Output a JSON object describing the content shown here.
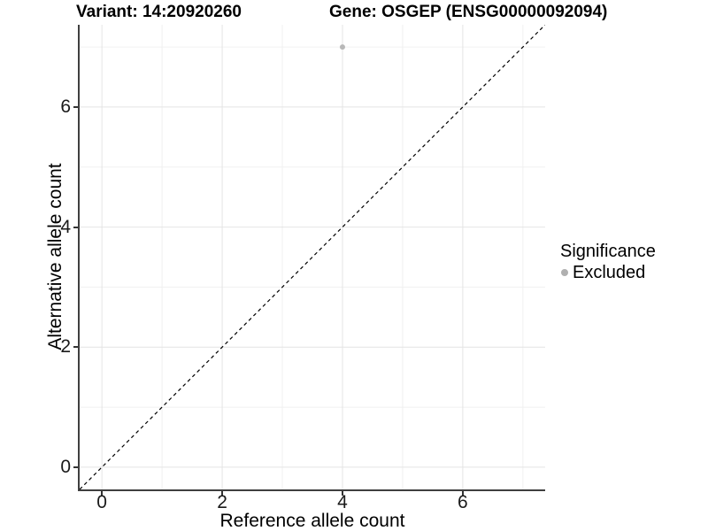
{
  "chart_data": {
    "type": "scatter",
    "titles": {
      "left": "Variant: 14:20920260",
      "right": "Gene: OSGEP (ENSG00000092094)"
    },
    "xlabel": "Reference allele count",
    "ylabel": "Alternative allele count",
    "x_ticks": [
      0,
      2,
      4,
      6
    ],
    "y_ticks": [
      0,
      2,
      4,
      6
    ],
    "grid_minor": [
      1,
      3,
      5,
      7
    ],
    "xlim": [
      -0.37,
      7.37
    ],
    "ylim": [
      -0.37,
      7.37
    ],
    "series": [
      {
        "name": "Excluded",
        "color": "#b8b8b8",
        "points": [
          {
            "x": 4,
            "y": 7
          }
        ]
      }
    ],
    "reference_line": {
      "kind": "identity y=x",
      "style": "dashed",
      "color": "#000000"
    },
    "legend": {
      "title": "Significance",
      "position": "right",
      "entries": [
        {
          "label": "Excluded",
          "color": "#b0b0b0"
        }
      ]
    },
    "grid": {
      "on": true,
      "major_color": "#e4e4e4",
      "minor_color": "#f0f0f0"
    },
    "colors": {
      "axis_line": "#3f3f3f",
      "tick_mark": "#333333",
      "text": "#000000"
    }
  }
}
